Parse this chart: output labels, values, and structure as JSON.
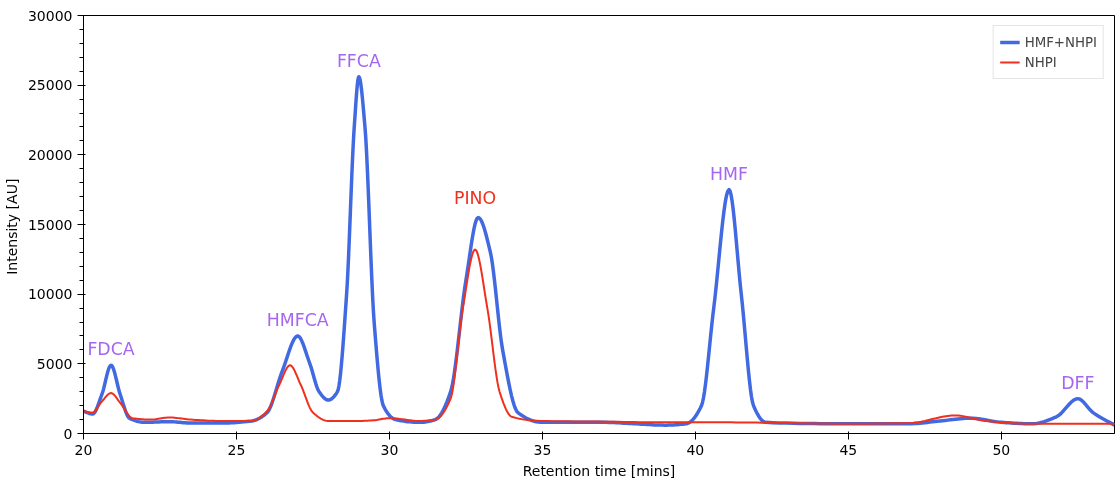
{
  "chart_data": {
    "type": "line",
    "xlabel": "Retention time [mins]",
    "ylabel": "Intensity  [AU]",
    "xlim": [
      20,
      53.7
    ],
    "ylim": [
      0,
      30000
    ],
    "xticks": [
      20,
      25,
      30,
      35,
      40,
      45,
      50
    ],
    "yticks": [
      0,
      5000,
      10000,
      15000,
      20000,
      25000,
      30000
    ],
    "grid": false,
    "legend": "top right",
    "marker": "none",
    "line_style": "solid",
    "series": [
      {
        "name": "HMF+NHPI",
        "color": "#4169e1",
        "x": [
          20,
          20.3,
          20.6,
          20.9,
          21.2,
          21.5,
          22,
          22.8,
          23.5,
          24.5,
          25.5,
          26,
          26.5,
          27,
          27.4,
          27.7,
          28,
          28.3,
          28.6,
          28.85,
          29.0,
          29.2,
          29.5,
          29.8,
          30.2,
          31,
          31.5,
          32,
          32.5,
          32.9,
          33.3,
          33.7,
          34.2,
          35,
          36,
          37,
          38,
          39,
          39.7,
          40.2,
          40.6,
          41.1,
          41.5,
          41.9,
          42.3,
          45,
          47,
          48,
          49,
          50,
          51,
          51.8,
          52.5,
          53,
          53.7
        ],
        "values": [
          1600,
          1400,
          2800,
          4900,
          2800,
          1100,
          800,
          850,
          750,
          750,
          900,
          1500,
          4500,
          7000,
          5000,
          3000,
          2400,
          3000,
          10000,
          22000,
          25600,
          22000,
          8000,
          2000,
          1000,
          800,
          1000,
          3000,
          11000,
          15500,
          13000,
          6000,
          1500,
          800,
          800,
          800,
          700,
          600,
          700,
          2000,
          9000,
          17500,
          10000,
          2000,
          800,
          700,
          700,
          900,
          1100,
          800,
          700,
          1200,
          2500,
          1500,
          600
        ]
      },
      {
        "name": "NHPI",
        "color": "#f0301c",
        "x": [
          20,
          20.3,
          20.6,
          20.9,
          21.2,
          21.6,
          22.2,
          22.8,
          23.5,
          24.5,
          25.5,
          26,
          26.4,
          26.75,
          27.1,
          27.5,
          28,
          29,
          29.5,
          30,
          31,
          31.5,
          32,
          32.4,
          32.8,
          33.2,
          33.6,
          34,
          35,
          37,
          39,
          41,
          43,
          45,
          47,
          48.5,
          49.5,
          51,
          53.7
        ],
        "values": [
          1600,
          1500,
          2300,
          2900,
          2200,
          1100,
          1000,
          1150,
          1000,
          900,
          900,
          1600,
          3500,
          4900,
          3500,
          1500,
          900,
          900,
          950,
          1100,
          900,
          1000,
          2500,
          9000,
          13200,
          9000,
          3000,
          1200,
          900,
          850,
          800,
          800,
          750,
          700,
          750,
          1300,
          900,
          700,
          700
        ]
      }
    ],
    "annotations": [
      {
        "text": "FDCA",
        "x": 20.9,
        "y": 4900
      },
      {
        "text": "HMFCA",
        "x": 27,
        "y": 7000
      },
      {
        "text": "FFCA",
        "x": 29.0,
        "y": 25600
      },
      {
        "text": "PINO",
        "x": 32.8,
        "y": 13200
      },
      {
        "text": "HMF",
        "x": 41.1,
        "y": 17500
      },
      {
        "text": "DFF",
        "x": 52.5,
        "y": 2500
      }
    ]
  }
}
